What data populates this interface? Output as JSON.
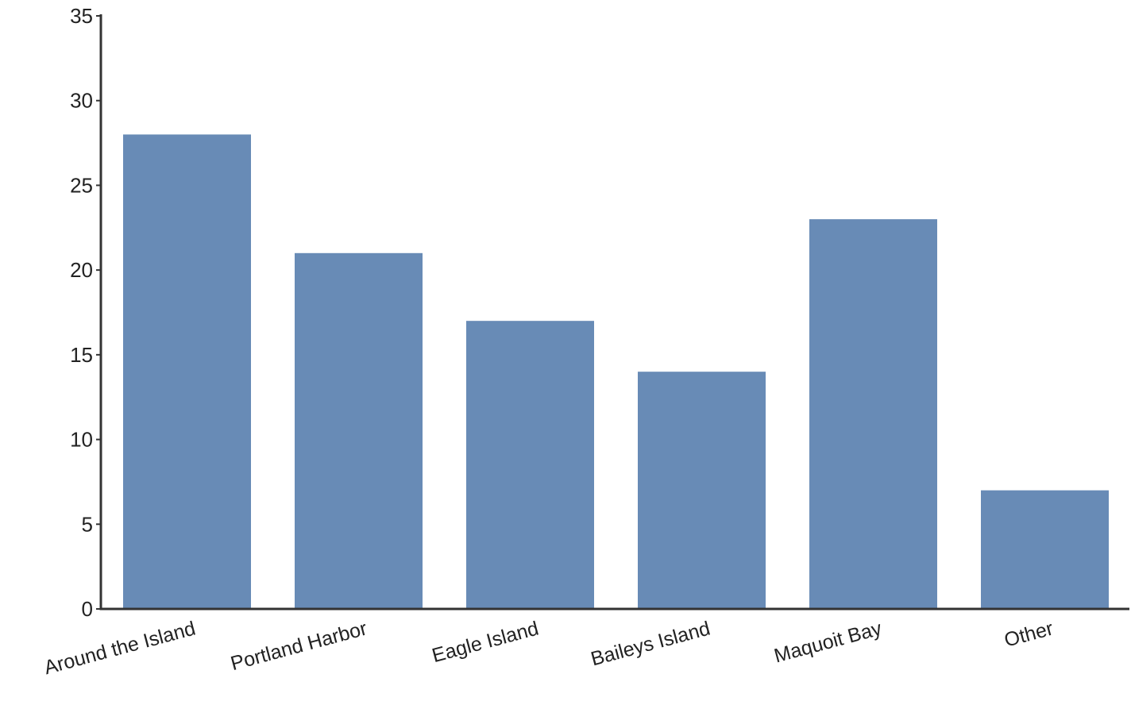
{
  "chart_data": {
    "type": "bar",
    "title": "",
    "xlabel": "",
    "ylabel": "",
    "categories": [
      "Around the Island",
      "Portland Harbor",
      "Eagle Island",
      "Baileys Island",
      "Maquoit Bay",
      "Other"
    ],
    "values": [
      28,
      21,
      17,
      14,
      23,
      7
    ],
    "ylim": [
      0,
      35
    ],
    "yticks": [
      0,
      5,
      10,
      15,
      20,
      25,
      30,
      35
    ],
    "grid": false,
    "legend": "none",
    "bar_color": "#688bb6",
    "axis_color": "#333333"
  }
}
